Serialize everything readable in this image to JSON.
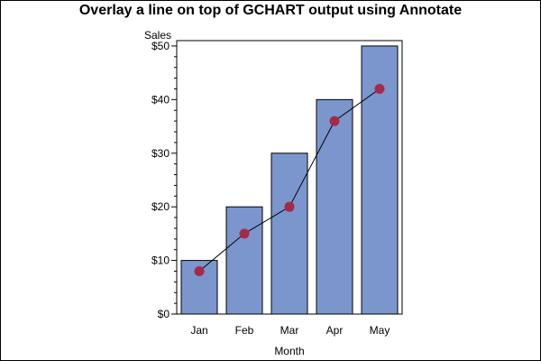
{
  "colors": {
    "bar_fill": "#7b96cd",
    "bar_stroke": "#000000",
    "marker": "#a52a48",
    "line": "#000000",
    "axis": "#000000",
    "background": "#ffffff"
  },
  "chart_data": {
    "type": "bar",
    "title": "Overlay a line on top of GCHART output using Annotate",
    "xlabel": "Month",
    "ylabel": "Sales",
    "categories": [
      "Jan",
      "Feb",
      "Mar",
      "Apr",
      "May"
    ],
    "series": [
      {
        "values": [
          10,
          20,
          30,
          40,
          50
        ],
        "type": "bar"
      },
      {
        "values": [
          8,
          15,
          20,
          36,
          42
        ],
        "type": "line",
        "marker": "circle"
      }
    ],
    "ylim": [
      0,
      51
    ],
    "yticks": [
      0,
      10,
      20,
      30,
      40,
      50
    ],
    "ytick_labels": [
      "$0",
      "$10",
      "$20",
      "$30",
      "$40",
      "$50"
    ],
    "minor_ticks_per_interval": 4,
    "grid": false,
    "legend": "none"
  }
}
